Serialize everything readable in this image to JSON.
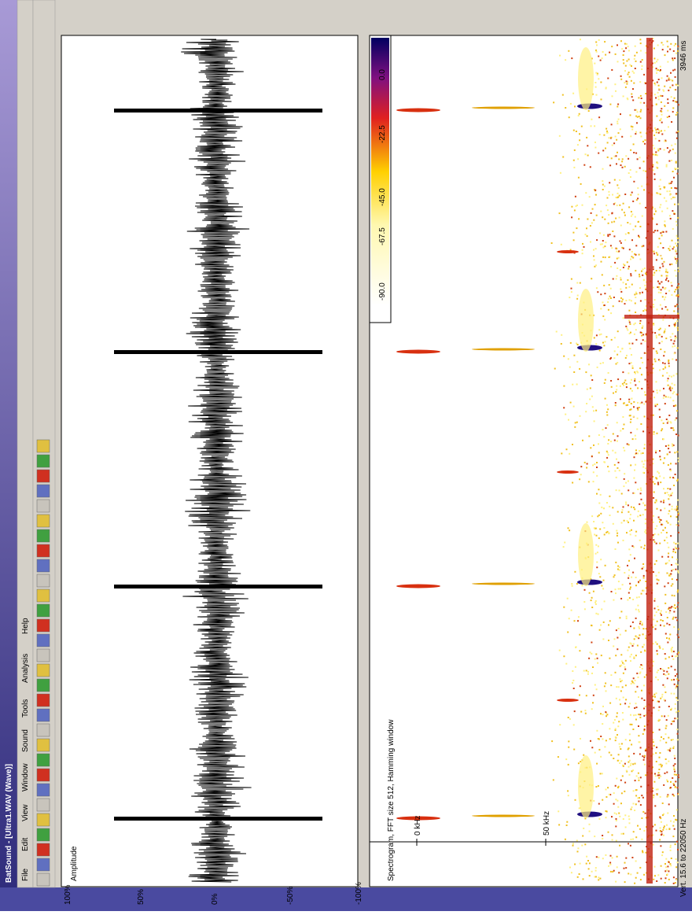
{
  "window": {
    "title": "BatSound - [Ultra1.WAV (Wave)]"
  },
  "menu": [
    "File",
    "Edit",
    "View",
    "Window",
    "Sound",
    "Tools",
    "Analysis",
    "Help"
  ],
  "waveform": {
    "label": "Amplitude",
    "axis_labels": [
      "100%",
      "50%",
      "0%",
      "-50%",
      "-100%"
    ]
  },
  "spectrogram": {
    "label": "Spectrogram, FFT size 512, Hamming window",
    "axis_labels": [
      "0 kHz",
      "50 kHz"
    ],
    "colorbar_labels": [
      "0.0",
      "-22.5",
      "-45.0",
      "-67.5",
      "-90.0"
    ],
    "time_label": "3946 ms",
    "status": "Vert. 15.6 to 22050 Hz"
  }
}
